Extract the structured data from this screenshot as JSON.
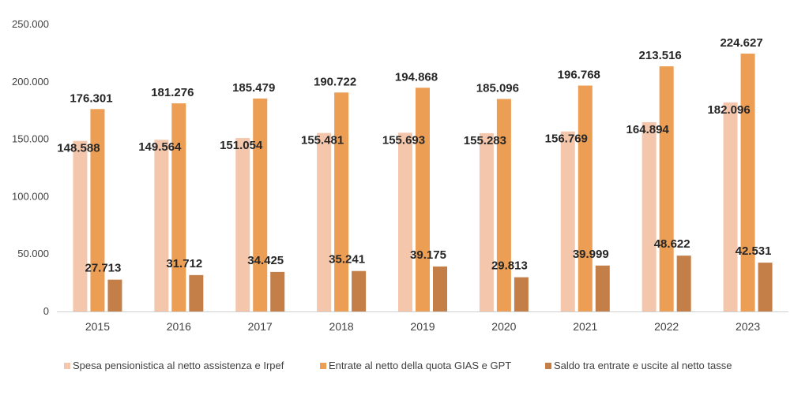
{
  "chart_data": {
    "type": "bar",
    "categories": [
      "2015",
      "2016",
      "2017",
      "2018",
      "2019",
      "2020",
      "2021",
      "2022",
      "2023"
    ],
    "series": [
      {
        "name": "Spesa pensionistica al netto assistenza e Irpef",
        "color": "#F4C7AC",
        "values": [
          148588,
          149564,
          151054,
          155481,
          155693,
          155283,
          156769,
          164894,
          182096
        ],
        "labels": [
          "148.588",
          "149.564",
          "151.054",
          "155.481",
          "155.693",
          "155.283",
          "156.769",
          "164.894",
          "182.096"
        ]
      },
      {
        "name": "Entrate al netto della quota GIAS e GPT",
        "color": "#EC9E55",
        "values": [
          176301,
          181276,
          185479,
          190722,
          194868,
          185096,
          196768,
          213516,
          224627
        ],
        "labels": [
          "176.301",
          "181.276",
          "185.479",
          "190.722",
          "194.868",
          "185.096",
          "196.768",
          "213.516",
          "224.627"
        ]
      },
      {
        "name": "Saldo tra entrate e uscite al netto tasse",
        "color": "#C47E48",
        "values": [
          27713,
          31712,
          34425,
          35241,
          39175,
          29813,
          39999,
          48622,
          42531
        ],
        "labels": [
          "27.713",
          "31.712",
          "34.425",
          "35.241",
          "39.175",
          "29.813",
          "39.999",
          "48.622",
          "42.531"
        ]
      }
    ],
    "yticks": [
      0,
      50000,
      100000,
      150000,
      200000,
      250000
    ],
    "ytick_labels": [
      "0",
      "50.000",
      "100.000",
      "150.000",
      "200.000",
      "250.000"
    ],
    "ylim": [
      0,
      250000
    ],
    "grid": false,
    "legend_position": "bottom"
  }
}
